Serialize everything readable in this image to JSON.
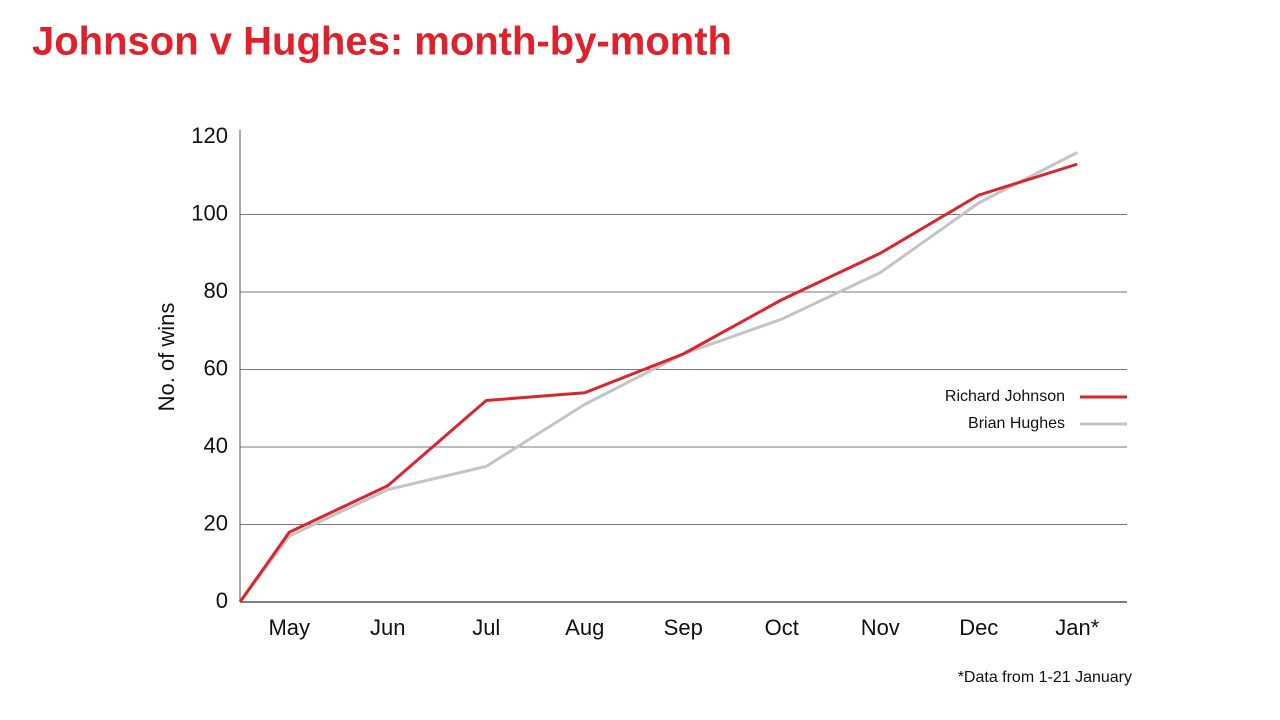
{
  "chart_data": {
    "type": "line",
    "title": "Johnson v Hughes: month-by-month",
    "y_label": "No. of wins",
    "footnote": "*Data from 1-21 January",
    "categories": [
      null,
      "May",
      "Jun",
      "Jul",
      "Aug",
      "Sep",
      "Oct",
      "Nov",
      "Dec",
      "Jan*"
    ],
    "series": [
      {
        "name": "Richard Johnson",
        "color": "#d9262e",
        "values": [
          0,
          18,
          30,
          52,
          54,
          64,
          78,
          90,
          105,
          113
        ]
      },
      {
        "name": "Brian Hughes",
        "color": "#c4c4c4",
        "values": [
          0,
          17,
          29,
          35,
          51,
          64,
          73,
          85,
          103,
          116
        ]
      }
    ],
    "ylim": [
      0,
      120
    ],
    "yticks": [
      0,
      20,
      40,
      60,
      80,
      100,
      120
    ],
    "grid": true,
    "legend": "right"
  }
}
